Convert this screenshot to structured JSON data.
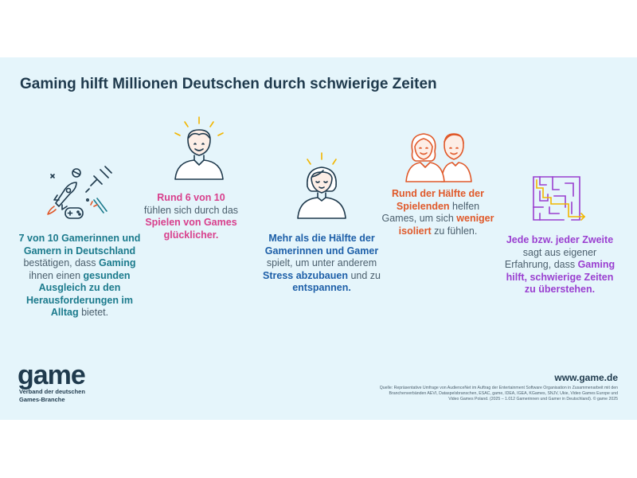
{
  "title": "Gaming hilft Millionen Deutschen durch schwierige Zeiten",
  "columns": [
    {
      "icon": "gaming-items-icon",
      "parts": [
        [
          "7 von 10 Gamerinnen und Gamern in Deutschland",
          true
        ],
        [
          " bestätigen, dass ",
          false
        ],
        [
          "Gaming",
          true
        ],
        [
          " ihnen einen ",
          false
        ],
        [
          "gesunden Ausgleich zu den Herausforderungen im Alltag",
          true
        ],
        [
          " bietet.",
          false
        ]
      ]
    },
    {
      "icon": "happy-person-icon",
      "parts": [
        [
          "Rund 6 von 10",
          true
        ],
        [
          " fühlen sich durch das ",
          false
        ],
        [
          "Spielen von Games glücklicher.",
          true
        ]
      ]
    },
    {
      "icon": "relaxed-person-icon",
      "parts": [
        [
          "Mehr als die Hälfte der Gamerinnen und Gamer",
          true
        ],
        [
          " spielt, um unter anderem ",
          false
        ],
        [
          "Stress abzubauen",
          true
        ],
        [
          " und zu ",
          false
        ],
        [
          "entspannen.",
          true
        ]
      ]
    },
    {
      "icon": "two-people-icon",
      "parts": [
        [
          "Rund der Hälfte der Spielenden",
          true
        ],
        [
          " helfen Games, um sich ",
          false
        ],
        [
          "weniger isoliert",
          true
        ],
        [
          " zu fühlen.",
          false
        ]
      ]
    },
    {
      "icon": "maze-icon",
      "parts": [
        [
          "Jede bzw. jeder Zweite",
          true
        ],
        [
          " sagt aus eigener Erfahrung, dass ",
          false
        ],
        [
          "Gaming hilft, schwierige Zeiten zu überstehen.",
          true
        ]
      ]
    }
  ],
  "logo": {
    "word": "game",
    "sub1": "Verband der deutschen",
    "sub2": "Games-Branche"
  },
  "url": "www.game.de",
  "source": "Quelle: Repräsentative Umfrage von AudienceNet im Auftrag der Entertainment Software Organisation in Zusammenarbeit mit den Branchenverbänden AEVI, Dataspelsbranschen, ESAC, game, IDEA, IGEA, KGames, SNJV, Ukie, Video Games Europe und Video Games Poland. (2025 – 1.012 Gamerinnen und Gamer in Deutschland). © game 2025"
}
